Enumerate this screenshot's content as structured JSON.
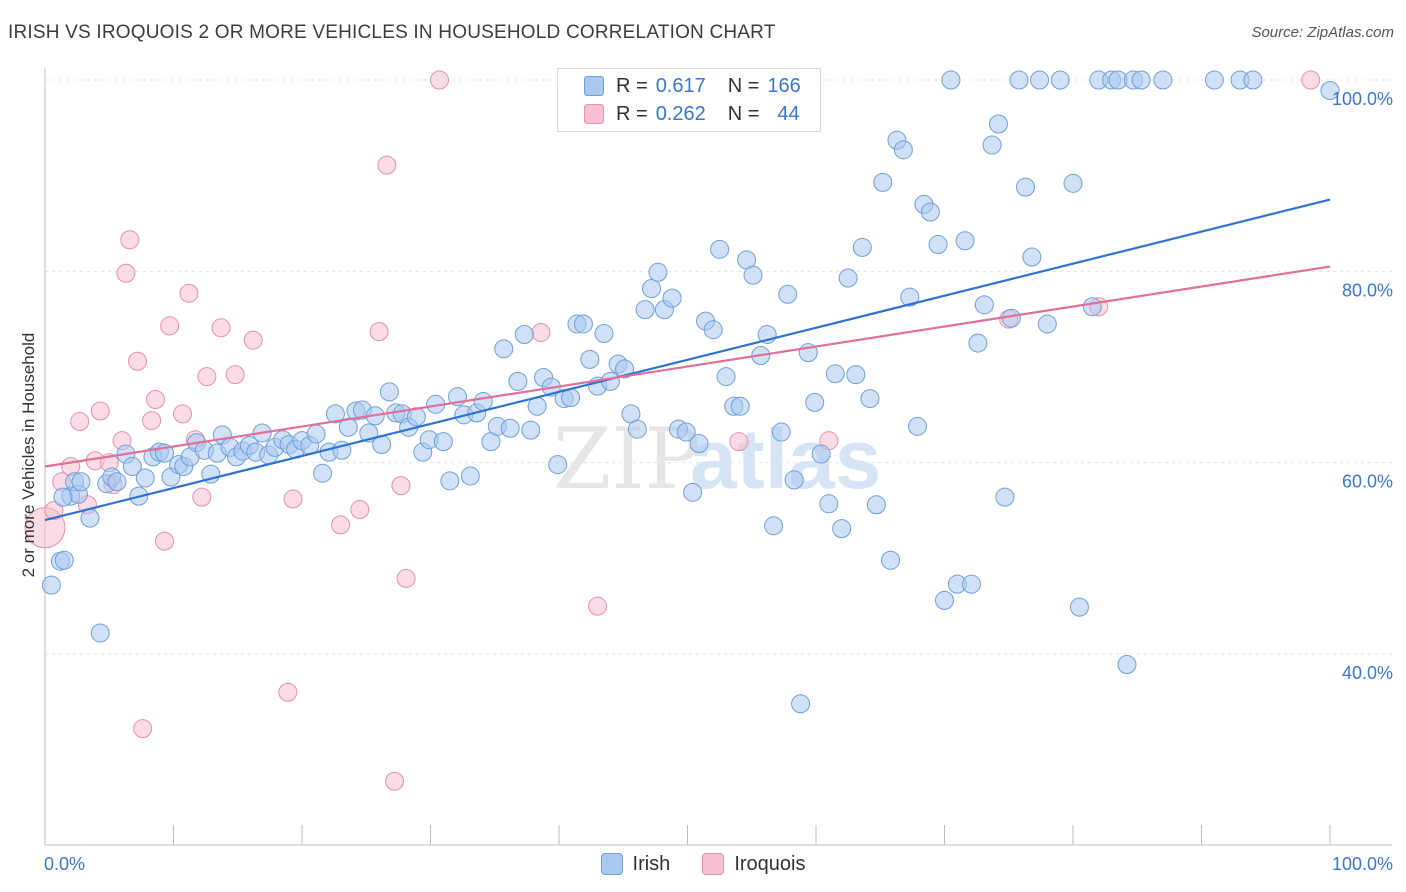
{
  "header": {
    "title": "IRISH VS IROQUOIS 2 OR MORE VEHICLES IN HOUSEHOLD CORRELATION CHART",
    "source": "Source: ZipAtlas.com"
  },
  "watermark": {
    "part1": "ZIP",
    "part2": "atlas"
  },
  "legend_top": {
    "rows": [
      {
        "r_label": "R =",
        "r_value": "0.617",
        "n_label": "N =",
        "n_value": "166",
        "color": "#a9c8f0",
        "stroke": "#6e9fd9"
      },
      {
        "r_label": "R =",
        "r_value": "0.262",
        "n_label": "N =",
        "n_value": "44",
        "color": "#f7bfd0",
        "stroke": "#e88fab"
      }
    ]
  },
  "legend_bottom": {
    "items": [
      {
        "label": "Irish",
        "color": "#a9c8f0",
        "stroke": "#6e9fd9"
      },
      {
        "label": "Iroquois",
        "color": "#f7bfd0",
        "stroke": "#e88fab"
      }
    ]
  },
  "chart_data": {
    "type": "scatter",
    "title": "IRISH VS IROQUOIS 2 OR MORE VEHICLES IN HOUSEHOLD CORRELATION CHART",
    "xlabel": "",
    "ylabel": "2 or more Vehicles in Household",
    "xlim": [
      0,
      100
    ],
    "ylim": [
      20,
      101
    ],
    "x_tick_labels": [
      "0.0%",
      "100.0%"
    ],
    "y_ticks": [
      40,
      60,
      80,
      100
    ],
    "y_tick_labels": [
      "40.0%",
      "60.0%",
      "80.0%",
      "100.0%"
    ],
    "grid": true,
    "legend_position": "top-center",
    "series": [
      {
        "name": "Irish",
        "color": "#6e9fd9",
        "fill": "#a9c8f0",
        "trend": [
          [
            0,
            54.0
          ],
          [
            100,
            87.5
          ]
        ],
        "points": [
          [
            0.5,
            47.2
          ],
          [
            1.2,
            49.7
          ],
          [
            1.5,
            49.8
          ],
          [
            2,
            56.5
          ],
          [
            2.3,
            58
          ],
          [
            2.6,
            56.7
          ],
          [
            2.8,
            58
          ],
          [
            3.5,
            54.2
          ],
          [
            4.3,
            42.2
          ],
          [
            4.8,
            57.8
          ],
          [
            5.2,
            58.5
          ],
          [
            5.6,
            58
          ],
          [
            6.3,
            60.9
          ],
          [
            6.8,
            59.6
          ],
          [
            7.3,
            56.5
          ],
          [
            7.8,
            58.4
          ],
          [
            8.4,
            60.6
          ],
          [
            8.9,
            61.1
          ],
          [
            9.3,
            61
          ],
          [
            9.8,
            58.5
          ],
          [
            10.4,
            59.8
          ],
          [
            10.8,
            59.6
          ],
          [
            11.3,
            60.6
          ],
          [
            11.8,
            62.1
          ],
          [
            12.4,
            61.3
          ],
          [
            12.9,
            58.8
          ],
          [
            13.4,
            61
          ],
          [
            13.8,
            62.9
          ],
          [
            14.4,
            61.6
          ],
          [
            14.9,
            60.6
          ],
          [
            15.4,
            61.2
          ],
          [
            15.9,
            61.8
          ],
          [
            16.4,
            61.1
          ],
          [
            16.9,
            63.1
          ],
          [
            17.4,
            60.8
          ],
          [
            17.9,
            61.6
          ],
          [
            18.5,
            62.4
          ],
          [
            19,
            61.9
          ],
          [
            19.5,
            61.4
          ],
          [
            20,
            62.3
          ],
          [
            20.6,
            61.8
          ],
          [
            21.1,
            63
          ],
          [
            21.6,
            58.9
          ],
          [
            22.1,
            61.1
          ],
          [
            22.6,
            65.1
          ],
          [
            23.1,
            61.3
          ],
          [
            23.6,
            63.7
          ],
          [
            24.2,
            65.4
          ],
          [
            24.7,
            65.5
          ],
          [
            25.2,
            63.1
          ],
          [
            25.7,
            64.9
          ],
          [
            26.2,
            61.9
          ],
          [
            26.8,
            67.4
          ],
          [
            27.3,
            65.2
          ],
          [
            27.8,
            65.1
          ],
          [
            28.3,
            63.7
          ],
          [
            28.9,
            64.8
          ],
          [
            29.4,
            61.1
          ],
          [
            29.9,
            62.4
          ],
          [
            30.4,
            66.1
          ],
          [
            31,
            62.2
          ],
          [
            31.5,
            58.1
          ],
          [
            32.1,
            66.9
          ],
          [
            32.6,
            65
          ],
          [
            33.1,
            58.6
          ],
          [
            33.6,
            65.2
          ],
          [
            34.1,
            66.4
          ],
          [
            34.7,
            62.2
          ],
          [
            35.2,
            63.8
          ],
          [
            35.7,
            71.9
          ],
          [
            36.2,
            63.6
          ],
          [
            36.8,
            68.5
          ],
          [
            37.3,
            73.4
          ],
          [
            37.8,
            63.4
          ],
          [
            38.3,
            65.9
          ],
          [
            38.8,
            68.9
          ],
          [
            39.4,
            67.9
          ],
          [
            39.9,
            59.8
          ],
          [
            40.4,
            66.7
          ],
          [
            40.9,
            66.8
          ],
          [
            41.4,
            74.5
          ],
          [
            41.9,
            74.5
          ],
          [
            42.4,
            70.8
          ],
          [
            43,
            68
          ],
          [
            43.5,
            73.5
          ],
          [
            44,
            68.5
          ],
          [
            44.6,
            70.3
          ],
          [
            45.1,
            69.8
          ],
          [
            45.6,
            65.1
          ],
          [
            46.1,
            63.5
          ],
          [
            46.7,
            76
          ],
          [
            47.2,
            78.2
          ],
          [
            47.7,
            79.9
          ],
          [
            48.2,
            76
          ],
          [
            48.8,
            77.2
          ],
          [
            49.3,
            63.5
          ],
          [
            49.9,
            63.2
          ],
          [
            50.4,
            56.9
          ],
          [
            50.9,
            62
          ],
          [
            51.4,
            74.8
          ],
          [
            52,
            73.9
          ],
          [
            52.5,
            82.3
          ],
          [
            53,
            69
          ],
          [
            53.6,
            65.9
          ],
          [
            54.1,
            65.9
          ],
          [
            54.6,
            81.2
          ],
          [
            55.1,
            79.6
          ],
          [
            55.7,
            71.2
          ],
          [
            56.2,
            73.4
          ],
          [
            56.7,
            53.4
          ],
          [
            57.3,
            63.2
          ],
          [
            57.8,
            77.6
          ],
          [
            58.3,
            58.2
          ],
          [
            58.8,
            34.8
          ],
          [
            59.4,
            71.5
          ],
          [
            59.9,
            66.3
          ],
          [
            60.4,
            60.9
          ],
          [
            61,
            55.7
          ],
          [
            61.5,
            69.3
          ],
          [
            62,
            53.1
          ],
          [
            62.5,
            79.3
          ],
          [
            63.1,
            69.2
          ],
          [
            63.6,
            82.5
          ],
          [
            64.2,
            66.7
          ],
          [
            64.7,
            55.6
          ],
          [
            65.2,
            89.3
          ],
          [
            65.8,
            49.8
          ],
          [
            66.3,
            93.7
          ],
          [
            66.8,
            92.7
          ],
          [
            67.3,
            77.3
          ],
          [
            67.9,
            63.8
          ],
          [
            68.4,
            87
          ],
          [
            68.9,
            86.2
          ],
          [
            69.5,
            82.8
          ],
          [
            70,
            45.6
          ],
          [
            70.5,
            100
          ],
          [
            71,
            47.3
          ],
          [
            71.6,
            83.2
          ],
          [
            72.1,
            47.3
          ],
          [
            72.6,
            72.5
          ],
          [
            73.1,
            76.5
          ],
          [
            73.7,
            93.2
          ],
          [
            74.2,
            95.4
          ],
          [
            74.7,
            56.4
          ],
          [
            75.2,
            75.1
          ],
          [
            75.8,
            100
          ],
          [
            76.3,
            88.8
          ],
          [
            76.8,
            81.5
          ],
          [
            77.4,
            100
          ],
          [
            78,
            74.5
          ],
          [
            79,
            100
          ],
          [
            80,
            89.2
          ],
          [
            80.5,
            44.9
          ],
          [
            81.5,
            76.3
          ],
          [
            82,
            100
          ],
          [
            83,
            100
          ],
          [
            83.5,
            100
          ],
          [
            84.2,
            38.9
          ],
          [
            84.7,
            100
          ],
          [
            85.3,
            100
          ],
          [
            87,
            100
          ],
          [
            91,
            100
          ],
          [
            93,
            100
          ],
          [
            94,
            100
          ],
          [
            100,
            98.9
          ],
          [
            1.4,
            56.4
          ]
        ]
      },
      {
        "name": "Iroquois",
        "color": "#e88fab",
        "fill": "#f7bfd0",
        "trend": [
          [
            0,
            59.6
          ],
          [
            100,
            80.5
          ]
        ],
        "points": [
          [
            0,
            53.2
          ],
          [
            0.7,
            55
          ],
          [
            1.3,
            58
          ],
          [
            2,
            59.6
          ],
          [
            2.7,
            64.3
          ],
          [
            3.3,
            55.6
          ],
          [
            3.9,
            60.2
          ],
          [
            4.3,
            65.4
          ],
          [
            5,
            60
          ],
          [
            5.3,
            57.7
          ],
          [
            6,
            62.3
          ],
          [
            6.3,
            79.8
          ],
          [
            6.6,
            83.3
          ],
          [
            7.2,
            70.6
          ],
          [
            7.6,
            32.2
          ],
          [
            8.3,
            64.4
          ],
          [
            8.6,
            66.6
          ],
          [
            9.3,
            51.8
          ],
          [
            9.7,
            74.3
          ],
          [
            10.7,
            65.1
          ],
          [
            11.2,
            77.7
          ],
          [
            11.7,
            62.4
          ],
          [
            12.2,
            56.4
          ],
          [
            12.6,
            69
          ],
          [
            13.7,
            74.1
          ],
          [
            14.8,
            69.2
          ],
          [
            16.2,
            72.8
          ],
          [
            18.9,
            36
          ],
          [
            19.3,
            56.2
          ],
          [
            23,
            53.5
          ],
          [
            24.5,
            55.1
          ],
          [
            26,
            73.7
          ],
          [
            26.6,
            91.1
          ],
          [
            27.2,
            26.7
          ],
          [
            27.7,
            57.6
          ],
          [
            28.1,
            47.9
          ],
          [
            30.7,
            100
          ],
          [
            38.6,
            73.6
          ],
          [
            43,
            45
          ],
          [
            54,
            62.2
          ],
          [
            61,
            62.3
          ],
          [
            75,
            75
          ],
          [
            82,
            76.3
          ],
          [
            98.5,
            100
          ]
        ]
      }
    ]
  }
}
